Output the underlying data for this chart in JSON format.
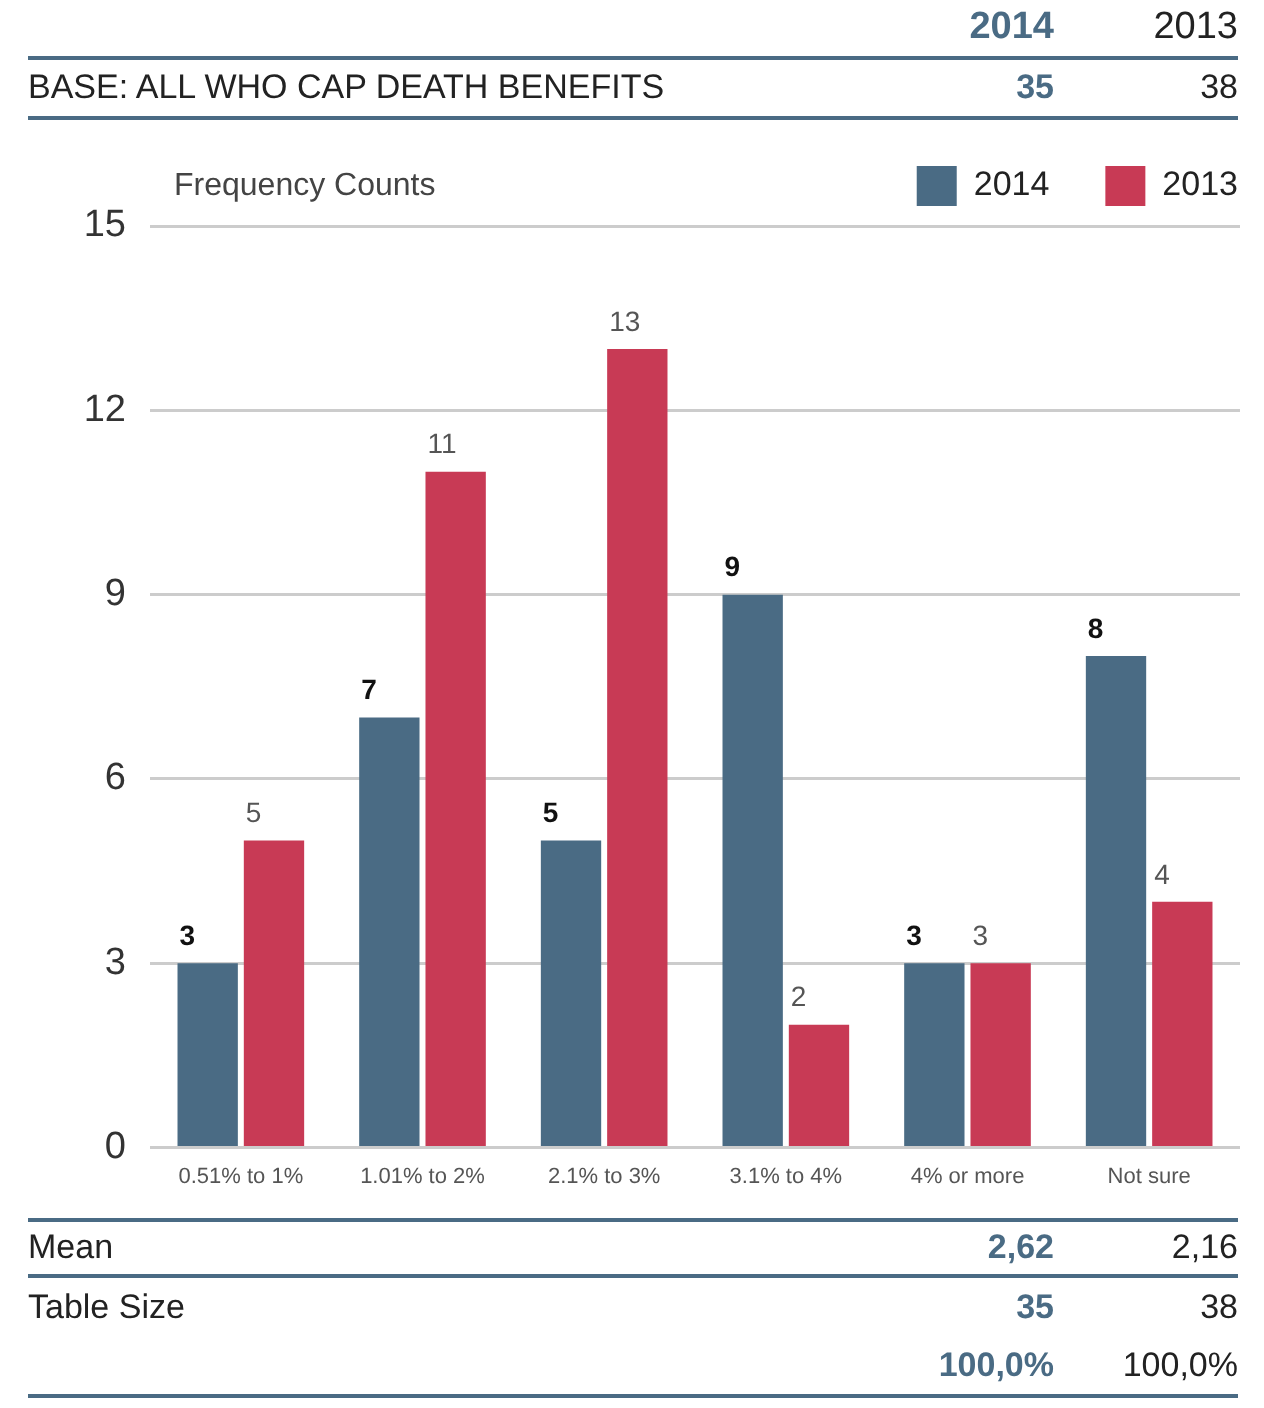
{
  "chart_data": {
    "type": "bar",
    "ylabel": "Frequency Counts",
    "categories": [
      "0.51% to 1%",
      "1.01% to 2%",
      "2.1% to 3%",
      "3.1% to 4%",
      "4% or more",
      "Not sure"
    ],
    "series": [
      {
        "name": "2014",
        "color": "#4a6b84",
        "values": [
          3,
          7,
          5,
          9,
          3,
          8
        ]
      },
      {
        "name": "2013",
        "color": "#c83a55",
        "values": [
          5,
          11,
          13,
          2,
          3,
          4
        ]
      }
    ],
    "ylim": [
      0,
      15
    ],
    "yticks": [
      0,
      3,
      6,
      9,
      12,
      15
    ],
    "grid": "y",
    "legend": "top right",
    "data_labels": true,
    "annotations": [
      "BASE: ALL WHO CAP DEATH BENEFITS",
      "35",
      "38",
      "Mean",
      "2,62",
      "2,16",
      "Table Size",
      "35",
      "38",
      "100,0%",
      "100,0%"
    ]
  }
}
